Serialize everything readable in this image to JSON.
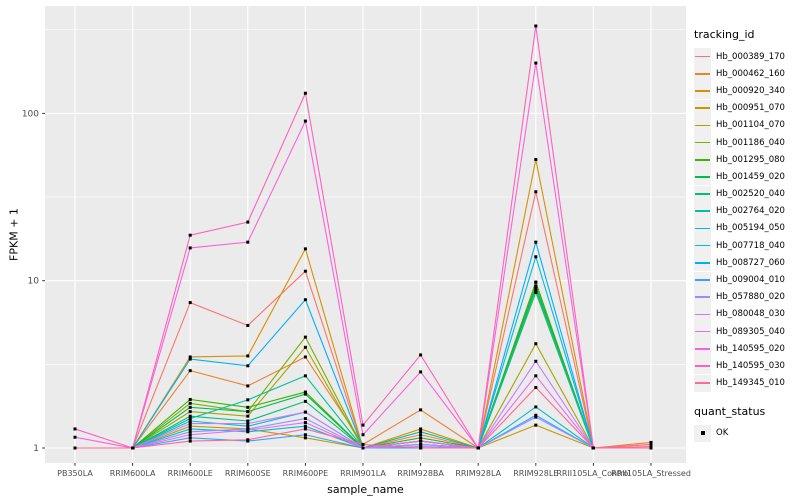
{
  "chart_data": {
    "type": "line",
    "title": "",
    "xlabel": "sample_name",
    "ylabel": "FPKM + 1",
    "y_scale": "log10",
    "y_ticks": [
      1,
      10,
      100
    ],
    "y_minor_ticks": [
      3.162,
      31.62,
      316.2
    ],
    "ylim": [
      0.81,
      440
    ],
    "legend_title": "tracking_id",
    "legend_position": "right",
    "grid": "on",
    "categories": [
      "PB350LA",
      "RRIM600LA",
      "RRIM600LE",
      "RRIM600SE",
      "RRIM600PE",
      "RRIM901LA",
      "RRIM928BA",
      "RRIM928LA",
      "RRIM928LE",
      "RRII105LA_Control",
      "RRII105LA_Stressed"
    ],
    "series": [
      {
        "name": "Hb_000389_170",
        "color": "#F8766D",
        "values": [
          1,
          1,
          7.4,
          5.4,
          11.4,
          1,
          1.2,
          1,
          34,
          1,
          1.02
        ]
      },
      {
        "name": "Hb_000462_160",
        "color": "#EA8331",
        "values": [
          1,
          1,
          2.9,
          2.35,
          3.5,
          1.05,
          1.69,
          1,
          9.8,
          1,
          1.08
        ]
      },
      {
        "name": "Hb_000920_340",
        "color": "#D89000",
        "values": [
          1,
          1,
          3.5,
          3.55,
          15.5,
          1,
          1.3,
          1,
          53,
          1,
          1.05
        ]
      },
      {
        "name": "Hb_000951_070",
        "color": "#C09B00",
        "values": [
          1,
          1,
          1.35,
          1.3,
          1.15,
          1,
          1,
          1,
          1.37,
          1,
          1
        ]
      },
      {
        "name": "Hb_001104_070",
        "color": "#A3A500",
        "values": [
          1,
          1,
          1.65,
          1.55,
          4.0,
          1,
          1.05,
          1,
          4.2,
          1,
          1
        ]
      },
      {
        "name": "Hb_001186_040",
        "color": "#7CAE00",
        "values": [
          1,
          1,
          1.85,
          1.65,
          4.6,
          1,
          1.1,
          1,
          8.5,
          1,
          1
        ]
      },
      {
        "name": "Hb_001295_080",
        "color": "#39B600",
        "values": [
          1,
          1,
          1.95,
          1.75,
          2.16,
          1,
          1.15,
          1,
          9.8,
          1,
          1
        ]
      },
      {
        "name": "Hb_001459_020",
        "color": "#00BB4E",
        "values": [
          1,
          1,
          1.75,
          1.65,
          2.1,
          1,
          1.1,
          1,
          9.3,
          1,
          1
        ]
      },
      {
        "name": "Hb_002520_040",
        "color": "#00BF7D",
        "values": [
          1,
          1,
          1.55,
          1.45,
          1.9,
          1,
          1.05,
          1,
          9.0,
          1,
          1
        ]
      },
      {
        "name": "Hb_002764_020",
        "color": "#00C1A3",
        "values": [
          1,
          1,
          1.5,
          1.94,
          2.7,
          1,
          1.25,
          1,
          8.7,
          1,
          1
        ]
      },
      {
        "name": "Hb_005194_050",
        "color": "#00BFC4",
        "values": [
          1,
          1,
          1.45,
          1.35,
          1.64,
          1,
          1,
          1,
          1.76,
          1,
          1
        ]
      },
      {
        "name": "Hb_007718_040",
        "color": "#00BAE0",
        "values": [
          1,
          1,
          1.3,
          1.25,
          1.35,
          1,
          1.05,
          1,
          13.9,
          1,
          1
        ]
      },
      {
        "name": "Hb_008727_060",
        "color": "#00B0F6",
        "values": [
          1,
          1,
          3.4,
          3.1,
          7.7,
          1,
          1.1,
          1,
          17,
          1,
          1
        ]
      },
      {
        "name": "Hb_009004_010",
        "color": "#35A2FF",
        "values": [
          1,
          1,
          1.15,
          1.1,
          1.2,
          1,
          1,
          1,
          1.57,
          1,
          1
        ]
      },
      {
        "name": "Hb_057880_020",
        "color": "#9590FF",
        "values": [
          1,
          1,
          1.25,
          1.3,
          1.5,
          1,
          1.02,
          1,
          1.53,
          1,
          1
        ]
      },
      {
        "name": "Hb_080048_030",
        "color": "#C77CFF",
        "values": [
          1,
          1,
          1.4,
          1.4,
          1.64,
          1,
          1.05,
          1,
          3.3,
          1,
          1
        ]
      },
      {
        "name": "Hb_089305_040",
        "color": "#E76BF3",
        "values": [
          1,
          1,
          1.2,
          1.28,
          1.42,
          1,
          1.1,
          1,
          2.7,
          1,
          1
        ]
      },
      {
        "name": "Hb_140595_020",
        "color": "#FA62DB",
        "values": [
          1.16,
          1,
          15.7,
          17,
          90,
          1.2,
          2.85,
          1,
          200,
          1,
          1
        ]
      },
      {
        "name": "Hb_140595_030",
        "color": "#FF62BC",
        "values": [
          1.3,
          1,
          18.7,
          22.4,
          132,
          1.37,
          3.6,
          1,
          333,
          1,
          1
        ]
      },
      {
        "name": "Hb_149345_010",
        "color": "#FF6A98",
        "values": [
          1,
          1,
          1.1,
          1.12,
          1.3,
          1.05,
          1,
          1,
          2.3,
          1,
          1.05
        ]
      }
    ],
    "quant_status": {
      "title": "quant_status",
      "label": "OK",
      "marker": "black-square"
    },
    "style": {
      "panel_bg": "#EBEBEB",
      "grid_color": "#FFFFFF",
      "tick_label_color": "#4D4D4D",
      "tick_mark_color": "#333333",
      "marker_color": "#000000"
    }
  }
}
